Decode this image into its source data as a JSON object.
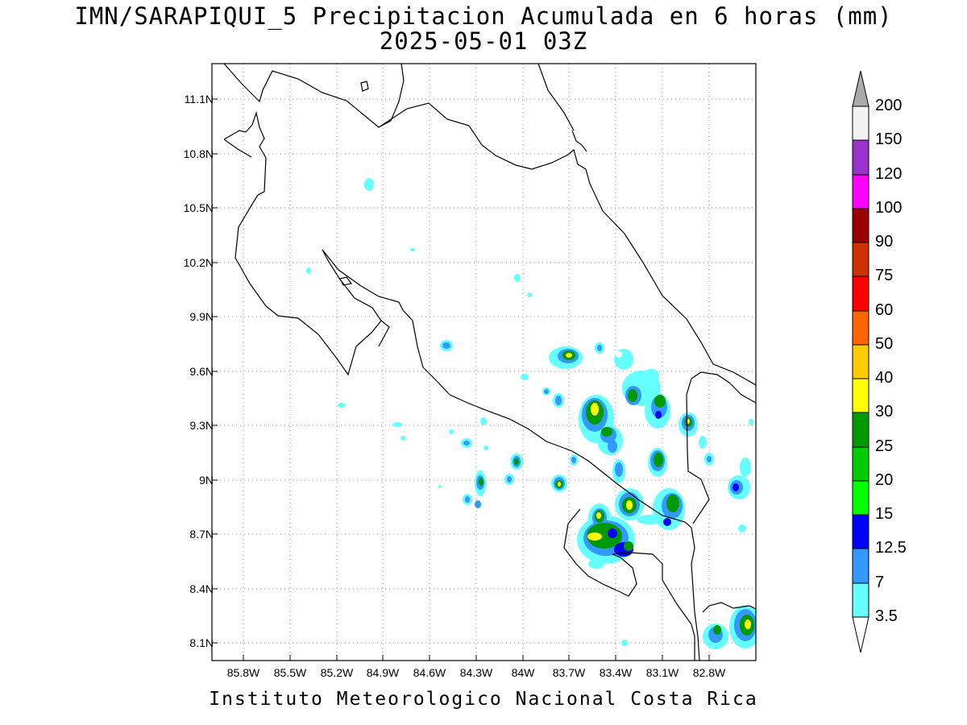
{
  "title": {
    "line1": "IMN/SARAPIQUI_5 Precipitacion Acumulada en 6 horas (mm)",
    "line2": "2025-05-01 03Z"
  },
  "footer": "Instituto Meteorologico Nacional Costa Rica",
  "map": {
    "lat_ticks": [
      "11.1N",
      "10.8N",
      "10.5N",
      "10.2N",
      "9.9N",
      "9.6N",
      "9.3N",
      "9N",
      "8.7N",
      "8.4N",
      "8.1N"
    ],
    "lon_ticks": [
      "85.8W",
      "85.5W",
      "85.2W",
      "84.9W",
      "84.6W",
      "84.3W",
      "84W",
      "83.7W",
      "83.4W",
      "83.1W",
      "82.8W"
    ],
    "gridlines": "dotted"
  },
  "colorbar": {
    "labels": [
      "3.5",
      "7",
      "12.5",
      "15",
      "20",
      "25",
      "30",
      "40",
      "50",
      "60",
      "75",
      "90",
      "100",
      "120",
      "150",
      "200"
    ],
    "colors": [
      "#66ffff",
      "#3399ff",
      "#0000ff",
      "#00ff00",
      "#00cc00",
      "#009900",
      "#ffff00",
      "#ffcc00",
      "#ff6600",
      "#ff0000",
      "#cc3300",
      "#990000",
      "#ff00ff",
      "#9933cc",
      "#f2f2f2",
      "#aaaaaa"
    ]
  }
}
